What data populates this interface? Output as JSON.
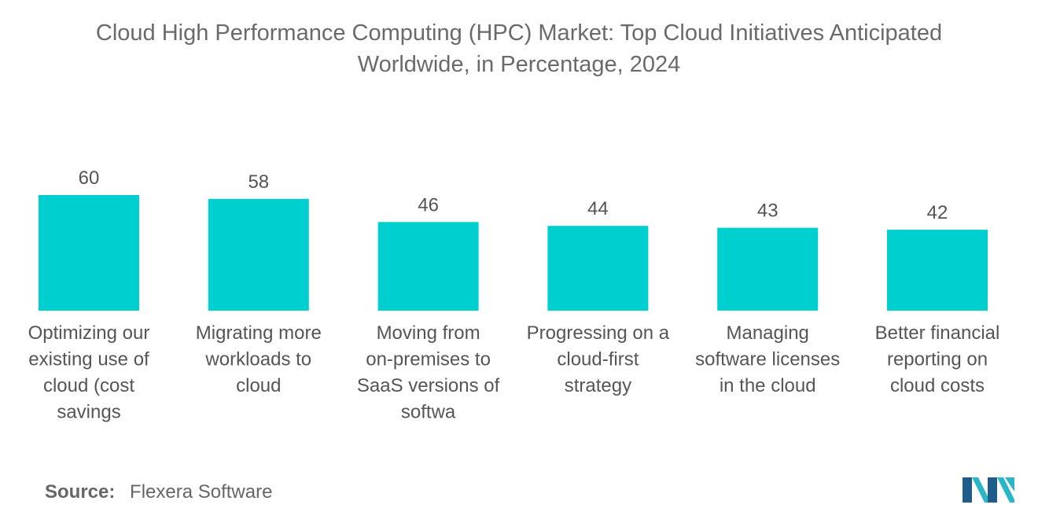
{
  "title_line1": "Cloud High Performance Computing (HPC) Market: Top Cloud Initiatives Anticipated",
  "title_line2": "Worldwide, in Percentage, 2024",
  "source_label": "Source:",
  "source_value": "Flexera Software",
  "colors": {
    "bar": "#00CFCF",
    "text": "#555555",
    "logo_dark": "#1F5C8A",
    "logo_teal": "#2BB5C9"
  },
  "logo_name": "mordor-intelligence-logo",
  "chart_data": {
    "type": "bar",
    "title": "Cloud High Performance Computing (HPC) Market: Top Cloud Initiatives Anticipated Worldwide, in Percentage, 2024",
    "xlabel": "",
    "ylabel": "",
    "ylim": [
      0,
      60
    ],
    "grid": false,
    "categories": [
      [
        "Optimizing our",
        "existing use of",
        "cloud (cost",
        "savings"
      ],
      [
        "Migrating more",
        "workloads to",
        "cloud"
      ],
      [
        "Moving from",
        "on-premises to",
        "SaaS versions of",
        "softwa"
      ],
      [
        "Progressing on a",
        "cloud-first",
        "strategy"
      ],
      [
        "Managing",
        "software licenses",
        "in the cloud"
      ],
      [
        "Better financial",
        "reporting on",
        "cloud costs"
      ]
    ],
    "values": [
      60,
      58,
      46,
      44,
      43,
      42
    ]
  }
}
